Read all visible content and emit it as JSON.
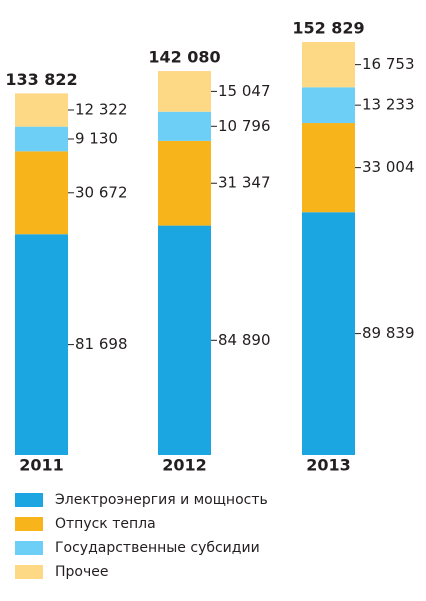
{
  "chart_data": {
    "type": "stacked_bar",
    "categories": [
      "2011",
      "2012",
      "2013"
    ],
    "series": [
      {
        "name": "Электроэнергия и мощность",
        "color": "#1ca6e1",
        "values": [
          81698,
          84890,
          89839
        ],
        "value_labels": [
          "81 698",
          "84 890",
          "89 839"
        ]
      },
      {
        "name": "Отпуск тепла",
        "color": "#f8b41b",
        "values": [
          30672,
          31347,
          33004
        ],
        "value_labels": [
          "30 672",
          "31 347",
          "33 004"
        ]
      },
      {
        "name": "Государственные субсидии",
        "color": "#6dcff5",
        "values": [
          9130,
          10796,
          13233
        ],
        "value_labels": [
          "9 130",
          "10 796",
          "13 233"
        ]
      },
      {
        "name": "Прочее",
        "color": "#fdd986",
        "values": [
          12322,
          15047,
          16753
        ],
        "value_labels": [
          "12 322",
          "15 047",
          "16 753"
        ]
      }
    ],
    "totals": [
      133822,
      142080,
      152829
    ],
    "total_labels": [
      "133 822",
      "142 080",
      "152 829"
    ]
  }
}
